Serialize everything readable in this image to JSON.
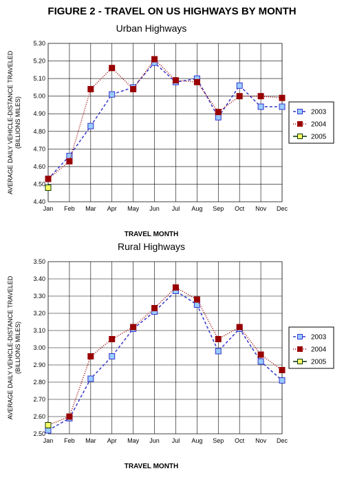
{
  "figure_title": "FIGURE 2 - TRAVEL ON US HIGHWAYS BY MONTH",
  "months": [
    "Jan",
    "Feb",
    "Mar",
    "Apr",
    "May",
    "Jun",
    "Jul",
    "Aug",
    "Sep",
    "Oct",
    "Nov",
    "Dec"
  ],
  "xlabel": "TRAVEL MONTH",
  "ylabel": "AVERAGE DAILY VEHICLE-DISTANCE TRAVELED\n(BILLIONS MILES)",
  "legend": {
    "items": [
      {
        "label": "2003",
        "color": "#3333cc",
        "marker_fill": "#99ccff",
        "dash": "4,3"
      },
      {
        "label": "2004",
        "color": "#990000",
        "marker_fill": "#990000",
        "dash": "1,2"
      },
      {
        "label": "2005",
        "color": "#003300",
        "marker_fill": "#ffff66",
        "dash": "none"
      }
    ],
    "border": "#000000",
    "bg": "#ffffff"
  },
  "chart_style": {
    "background": "#ffffff",
    "plot_border": "#808080",
    "grid_color": "#000000",
    "grid_stroke": 1,
    "marker_size": 4,
    "line_width": 1.5,
    "axis_font_size": 9,
    "tick_font_size": 9,
    "title_font_size": 14,
    "xlabel_font_size": 10,
    "ylabel_font_size": 9
  },
  "urban": {
    "subtitle": "Urban Highways",
    "ylim": [
      4.4,
      5.3
    ],
    "ytick_step": 0.1,
    "yticks": [
      "4.40",
      "4.50",
      "4.60",
      "4.70",
      "4.80",
      "4.90",
      "5.00",
      "5.10",
      "5.20",
      "5.30"
    ],
    "series": {
      "2003": [
        4.53,
        4.66,
        4.83,
        5.01,
        5.05,
        5.19,
        5.08,
        5.1,
        4.88,
        5.06,
        4.94,
        4.94
      ],
      "2004": [
        4.53,
        4.63,
        5.04,
        5.16,
        5.04,
        5.21,
        5.09,
        5.08,
        4.91,
        5.0,
        5.0,
        4.99
      ],
      "2005": [
        4.48
      ]
    }
  },
  "rural": {
    "subtitle": "Rural Highways",
    "ylim": [
      2.5,
      3.5
    ],
    "ytick_step": 0.1,
    "yticks": [
      "2.50",
      "2.60",
      "2.70",
      "2.80",
      "2.90",
      "3.00",
      "3.10",
      "3.20",
      "3.30",
      "3.40",
      "3.50"
    ],
    "series": {
      "2003": [
        2.52,
        2.59,
        2.82,
        2.95,
        3.11,
        3.21,
        3.33,
        3.25,
        2.98,
        3.11,
        2.92,
        2.81
      ],
      "2004": [
        2.55,
        2.6,
        2.95,
        3.05,
        3.12,
        3.23,
        3.35,
        3.28,
        3.05,
        3.12,
        2.96,
        2.87
      ],
      "2005": [
        2.55
      ]
    }
  }
}
